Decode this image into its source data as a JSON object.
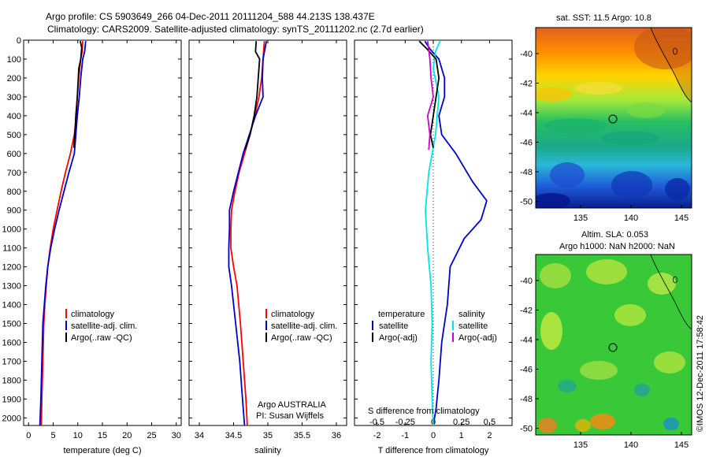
{
  "title_line1": "Argo profile: CS 5903649_266 04-Dec-2011 20111204_588 44.213S 138.437E",
  "title_line2": "Climatology: CARS2009. Satellite-adjusted climatology: synTS_20111202.nc (2.7d earlier)",
  "colors": {
    "climatology": "#ff0000",
    "satellite": "#0000cc",
    "argo": "#000000",
    "satellite_salinity": "#00e5e5",
    "argo_salinity": "#cc00cc"
  },
  "chart_data": [
    {
      "type": "line",
      "xlabel": "temperature (deg C)",
      "ylabel": "",
      "xlim": [
        -1,
        31
      ],
      "ylim": [
        2060,
        0
      ],
      "xticks": [
        "0",
        "5",
        "10",
        "15",
        "20",
        "25",
        "30"
      ],
      "yticks": [
        "0",
        "100",
        "200",
        "300",
        "400",
        "500",
        "600",
        "700",
        "800",
        "900",
        "1000",
        "1100",
        "1200",
        "1300",
        "1400",
        "1500",
        "1600",
        "1700",
        "1800",
        "1900",
        "2000"
      ],
      "legend": [
        "climatology",
        "satellite-adj. clim.",
        "Argo(..raw -QC)"
      ],
      "series": [
        {
          "name": "climatology",
          "color": "#ff0000",
          "points": [
            [
              11.0,
              5
            ],
            [
              10.9,
              60
            ],
            [
              10.6,
              100
            ],
            [
              10.2,
              200
            ],
            [
              9.9,
              300
            ],
            [
              9.7,
              400
            ],
            [
              9.3,
              500
            ],
            [
              8.5,
              600
            ],
            [
              7.5,
              700
            ],
            [
              6.6,
              800
            ],
            [
              5.8,
              900
            ],
            [
              5.0,
              1000
            ],
            [
              4.4,
              1100
            ],
            [
              3.9,
              1200
            ],
            [
              3.6,
              1300
            ],
            [
              3.3,
              1400
            ],
            [
              3.1,
              1500
            ],
            [
              2.9,
              1700
            ],
            [
              2.7,
              1900
            ],
            [
              2.6,
              2040
            ]
          ]
        },
        {
          "name": "satellite-adj. clim.",
          "color": "#0000cc",
          "points": [
            [
              11.6,
              5
            ],
            [
              11.4,
              60
            ],
            [
              11.0,
              100
            ],
            [
              10.6,
              200
            ],
            [
              10.3,
              300
            ],
            [
              9.9,
              400
            ],
            [
              9.6,
              500
            ],
            [
              9.3,
              600
            ],
            [
              8.2,
              700
            ],
            [
              7.2,
              800
            ],
            [
              6.2,
              900
            ],
            [
              5.3,
              1000
            ],
            [
              4.5,
              1100
            ],
            [
              3.9,
              1200
            ],
            [
              3.5,
              1300
            ],
            [
              3.2,
              1400
            ],
            [
              2.9,
              1500
            ],
            [
              2.7,
              1700
            ],
            [
              2.5,
              1900
            ],
            [
              2.3,
              2040
            ]
          ]
        },
        {
          "name": "Argo(..raw -QC)",
          "color": "#000000",
          "points": [
            [
              10.5,
              5
            ],
            [
              10.8,
              40
            ],
            [
              10.6,
              100
            ],
            [
              10.2,
              150
            ],
            [
              10.1,
              200
            ],
            [
              9.9,
              300
            ],
            [
              9.6,
              400
            ],
            [
              9.4,
              500
            ],
            [
              9.2,
              570
            ]
          ]
        }
      ]
    },
    {
      "type": "line",
      "xlabel": "salinity",
      "ylabel": "",
      "xlim": [
        33.85,
        36.15
      ],
      "ylim": [
        2060,
        0
      ],
      "xticks": [
        "34",
        "34.5",
        "35",
        "35.5",
        "36"
      ],
      "legend": [
        "climatology",
        "satellite-adj. clim.",
        "Argo(..raw -QC)"
      ],
      "annotation": [
        "Argo AUSTRALIA",
        "PI: Susan Wijffels"
      ],
      "series": [
        {
          "name": "climatology",
          "color": "#ff0000",
          "points": [
            [
              34.95,
              5
            ],
            [
              34.93,
              100
            ],
            [
              34.91,
              200
            ],
            [
              34.87,
              300
            ],
            [
              34.81,
              400
            ],
            [
              34.74,
              500
            ],
            [
              34.66,
              600
            ],
            [
              34.58,
              700
            ],
            [
              34.52,
              800
            ],
            [
              34.47,
              900
            ],
            [
              34.46,
              1000
            ],
            [
              34.46,
              1100
            ],
            [
              34.5,
              1200
            ],
            [
              34.55,
              1300
            ],
            [
              34.6,
              1500
            ],
            [
              34.64,
              1700
            ],
            [
              34.68,
              1900
            ],
            [
              34.7,
              2040
            ]
          ]
        },
        {
          "name": "satellite-adj. clim.",
          "color": "#0000cc",
          "points": [
            [
              34.98,
              5
            ],
            [
              34.93,
              100
            ],
            [
              34.92,
              200
            ],
            [
              34.93,
              300
            ],
            [
              34.82,
              400
            ],
            [
              34.73,
              500
            ],
            [
              34.64,
              600
            ],
            [
              34.57,
              700
            ],
            [
              34.5,
              800
            ],
            [
              34.44,
              900
            ],
            [
              34.44,
              1000
            ],
            [
              34.43,
              1100
            ],
            [
              34.43,
              1200
            ],
            [
              34.47,
              1300
            ],
            [
              34.53,
              1500
            ],
            [
              34.59,
              1700
            ],
            [
              34.63,
              1900
            ],
            [
              34.66,
              2040
            ]
          ]
        },
        {
          "name": "Argo(..raw -QC)",
          "color": "#000000",
          "points": [
            [
              34.83,
              5
            ],
            [
              34.82,
              60
            ],
            [
              34.88,
              100
            ],
            [
              34.86,
              200
            ],
            [
              34.84,
              300
            ],
            [
              34.8,
              400
            ],
            [
              34.74,
              500
            ],
            [
              34.67,
              580
            ]
          ]
        }
      ]
    },
    {
      "type": "line",
      "xlabel": "T difference from climatology",
      "x2label": "S difference from climatology",
      "xlim": [
        -2.8,
        2.8
      ],
      "ylim": [
        2060,
        0
      ],
      "xticks": [
        "-2",
        "-1",
        "0",
        "1",
        "2"
      ],
      "x2ticks": [
        "-0.5",
        "-0.25",
        "0",
        "0.25",
        "0.5"
      ],
      "legend_temperature": [
        "temperature",
        "satellite",
        "Argo(-adj)"
      ],
      "legend_salinity": [
        "salinity",
        "satellite",
        "Argo(-adj)"
      ],
      "series": [
        {
          "name": "satellite",
          "color": "#0000cc",
          "points": [
            [
              -0.3,
              5
            ],
            [
              -0.1,
              50
            ],
            [
              0.2,
              100
            ],
            [
              0.4,
              200
            ],
            [
              0.4,
              300
            ],
            [
              0.2,
              400
            ],
            [
              0.3,
              500
            ],
            [
              0.8,
              600
            ],
            [
              1.4,
              750
            ],
            [
              1.9,
              850
            ],
            [
              1.7,
              950
            ],
            [
              1.1,
              1050
            ],
            [
              0.6,
              1200
            ],
            [
              0.5,
              1400
            ],
            [
              0.3,
              1600
            ],
            [
              0.2,
              1800
            ],
            [
              0.1,
              1950
            ],
            [
              0.0,
              2040
            ]
          ]
        },
        {
          "name": "satellite",
          "color": "#00e5e5",
          "points": [
            [
              0.06,
              5
            ],
            [
              0.02,
              60
            ],
            [
              0.0,
              150
            ],
            [
              0.05,
              300
            ],
            [
              0.02,
              500
            ],
            [
              -0.04,
              700
            ],
            [
              -0.07,
              900
            ],
            [
              -0.05,
              1100
            ],
            [
              -0.02,
              1300
            ],
            [
              -0.01,
              1500
            ],
            [
              -0.02,
              1700
            ],
            [
              -0.01,
              1900
            ],
            [
              0.0,
              2040
            ]
          ]
        },
        {
          "name": "Argo(-adj)",
          "color": "#000000",
          "points": [
            [
              -0.5,
              5
            ],
            [
              -0.2,
              50
            ],
            [
              0.1,
              100
            ],
            [
              0.2,
              200
            ],
            [
              0.1,
              300
            ],
            [
              0.0,
              400
            ],
            [
              -0.1,
              500
            ],
            [
              0.0,
              570
            ]
          ]
        },
        {
          "name": "Argo(-adj)",
          "color": "#cc00cc",
          "points": [
            [
              -0.05,
              5
            ],
            [
              -0.03,
              100
            ],
            [
              -0.02,
              200
            ],
            [
              0.0,
              300
            ],
            [
              -0.05,
              400
            ],
            [
              -0.03,
              500
            ],
            [
              -0.04,
              580
            ]
          ]
        }
      ]
    }
  ],
  "map_sst": {
    "title": "sat. SST: 11.5 Argo: 10.8",
    "yticks": [
      "-40",
      "-42",
      "-44",
      "-46",
      "-48",
      "-50"
    ],
    "xticks": [
      "135",
      "140",
      "145"
    ]
  },
  "map_sla": {
    "title_line1": "Altim. SLA: 0.053",
    "title_line2": "Argo h1000: NaN h2000: NaN",
    "yticks": [
      "-40",
      "-42",
      "-44",
      "-46",
      "-48",
      "-50"
    ],
    "xticks": [
      "135",
      "140",
      "145"
    ]
  },
  "credit": "©IMOS 12-Dec-2011 17:58:42"
}
